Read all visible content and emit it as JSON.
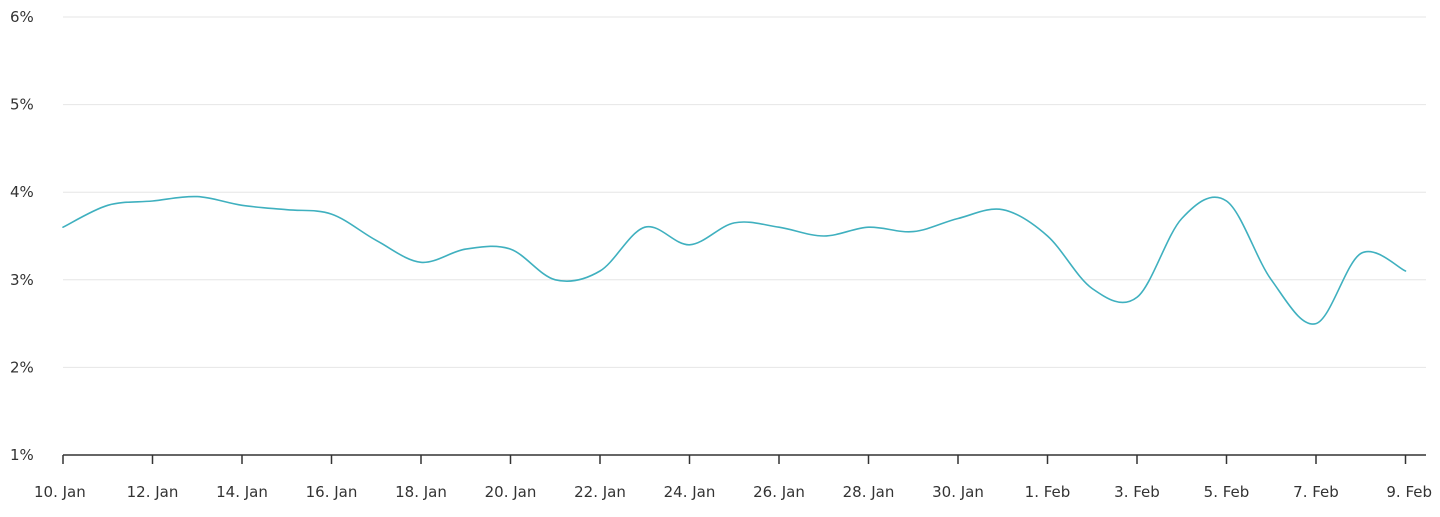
{
  "chart_data": {
    "type": "line",
    "title": "",
    "xlabel": "",
    "ylabel": "",
    "x_axis": {
      "start": "2024-01-10",
      "end": "2024-02-09",
      "tick_labels": [
        "10. Jan",
        "12. Jan",
        "14. Jan",
        "16. Jan",
        "18. Jan",
        "20. Jan",
        "22. Jan",
        "24. Jan",
        "26. Jan",
        "28. Jan",
        "30. Jan",
        "1. Feb",
        "3. Feb",
        "5. Feb",
        "7. Feb",
        "9. Feb"
      ]
    },
    "y_axis": {
      "ylim": [
        1,
        6
      ],
      "unit": "%",
      "tick_labels": [
        "1%",
        "2%",
        "3%",
        "4%",
        "5%",
        "6%"
      ]
    },
    "grid": true,
    "legend": false,
    "series": [
      {
        "color": "#3fb0bf",
        "x": [
          "2024-01-10",
          "2024-01-11",
          "2024-01-12",
          "2024-01-13",
          "2024-01-14",
          "2024-01-15",
          "2024-01-16",
          "2024-01-17",
          "2024-01-18",
          "2024-01-19",
          "2024-01-20",
          "2024-01-21",
          "2024-01-22",
          "2024-01-23",
          "2024-01-24",
          "2024-01-25",
          "2024-01-26",
          "2024-01-27",
          "2024-01-28",
          "2024-01-29",
          "2024-01-30",
          "2024-01-31",
          "2024-02-01",
          "2024-02-02",
          "2024-02-03",
          "2024-02-04",
          "2024-02-05",
          "2024-02-06",
          "2024-02-07",
          "2024-02-08",
          "2024-02-09"
        ],
        "values": [
          3.6,
          3.85,
          3.9,
          3.95,
          3.85,
          3.8,
          3.75,
          3.45,
          3.2,
          3.35,
          3.35,
          3.0,
          3.1,
          3.6,
          3.4,
          3.65,
          3.6,
          3.5,
          3.6,
          3.55,
          3.7,
          3.8,
          3.5,
          2.9,
          2.8,
          3.7,
          3.9,
          3.0,
          2.5,
          3.3,
          3.1
        ]
      }
    ]
  }
}
